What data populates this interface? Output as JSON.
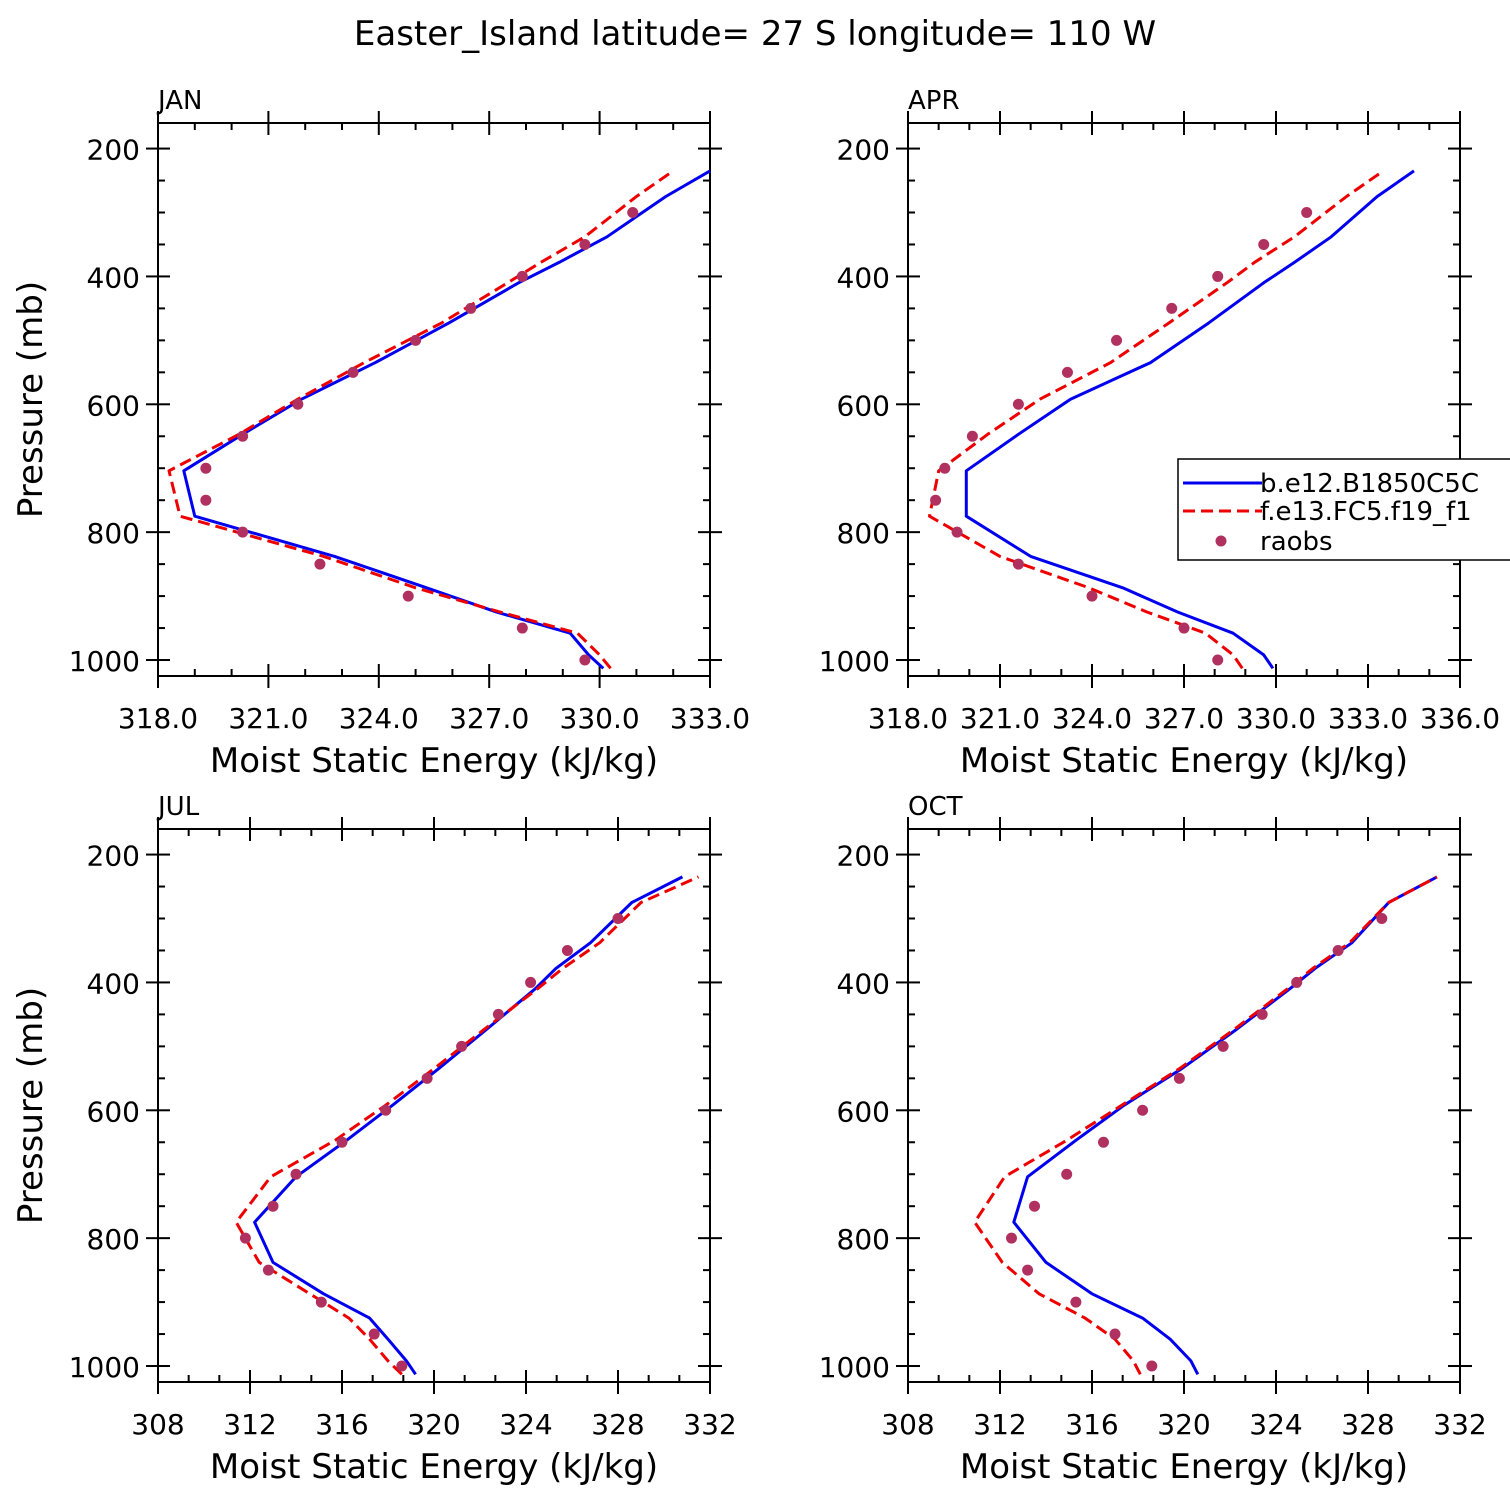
{
  "figure": {
    "title": "Easter_Island  latitude= 27 S longitude= 110 W"
  },
  "legend": {
    "entries": [
      {
        "label": "b.e12.B1850C5C",
        "style": "solid",
        "color": "#0000ee"
      },
      {
        "label": "f.e13.FC5.f19_f1",
        "style": "dashed",
        "color": "#ee0000"
      },
      {
        "label": "raobs",
        "style": "marker",
        "color": "#b03060"
      }
    ]
  },
  "chart_data": [
    {
      "type": "line",
      "panel_label": "JAN",
      "xlabel": "Moist Static Energy (kJ/kg)",
      "ylabel": "Pressure (mb)",
      "xlim": [
        318,
        333
      ],
      "ylim": [
        1000,
        200
      ],
      "x_ticks": [
        "318.0",
        "321.0",
        "324.0",
        "327.0",
        "330.0",
        "333.0"
      ],
      "y_ticks": [
        "200",
        "400",
        "600",
        "800",
        "1000"
      ],
      "pressure_model": [
        1013,
        992,
        958,
        925,
        887,
        838,
        775,
        704,
        647,
        592,
        535,
        473,
        410,
        378,
        338,
        275,
        235
      ],
      "series": [
        {
          "name": "b.e12.B1850C5C",
          "style": "solid",
          "color": "#0000ee",
          "values": [
            330.1,
            329.7,
            329.2,
            327.2,
            325.3,
            322.8,
            319.0,
            318.7,
            320.3,
            321.9,
            323.9,
            325.9,
            327.8,
            328.9,
            330.2,
            331.8,
            333.0
          ]
        },
        {
          "name": "f.e13.FC5.f19_f1",
          "style": "dashed",
          "color": "#ee0000",
          "values": [
            330.3,
            330.0,
            329.4,
            327.3,
            325.0,
            322.5,
            318.6,
            318.3,
            320.2,
            321.8,
            323.6,
            325.7,
            327.5,
            328.4,
            329.6,
            331.0,
            332.0
          ]
        },
        {
          "name": "raobs",
          "style": "marker",
          "color": "#b03060",
          "pressure": [
            1000,
            950,
            900,
            850,
            800,
            750,
            700,
            650,
            600,
            550,
            500,
            450,
            400,
            350,
            300
          ],
          "values": [
            329.6,
            327.9,
            324.8,
            322.4,
            320.3,
            319.3,
            319.3,
            320.3,
            321.8,
            323.3,
            325.0,
            326.5,
            327.9,
            329.6,
            330.9
          ]
        }
      ]
    },
    {
      "type": "line",
      "panel_label": "APR",
      "xlabel": "Moist Static Energy (kJ/kg)",
      "ylabel": "",
      "xlim": [
        318,
        336
      ],
      "ylim": [
        1000,
        200
      ],
      "x_ticks": [
        "318.0",
        "321.0",
        "324.0",
        "327.0",
        "330.0",
        "333.0",
        "336.0"
      ],
      "y_ticks": [
        "200",
        "400",
        "600",
        "800",
        "1000"
      ],
      "pressure_model": [
        1013,
        992,
        958,
        925,
        887,
        838,
        775,
        704,
        647,
        592,
        535,
        473,
        410,
        378,
        338,
        275,
        235
      ],
      "series": [
        {
          "name": "b.e12.B1850C5C",
          "style": "solid",
          "color": "#0000ee",
          "values": [
            329.9,
            329.6,
            328.6,
            326.8,
            325.0,
            322.0,
            319.9,
            319.9,
            321.6,
            323.3,
            325.9,
            327.8,
            329.6,
            330.6,
            331.8,
            333.3,
            334.5
          ]
        },
        {
          "name": "f.e13.FC5.f19_f1",
          "style": "dashed",
          "color": "#ee0000",
          "values": [
            328.9,
            328.6,
            327.7,
            325.8,
            323.9,
            321.0,
            318.7,
            319.0,
            320.6,
            322.3,
            324.6,
            326.5,
            328.4,
            329.3,
            330.6,
            332.3,
            333.5
          ]
        },
        {
          "name": "raobs",
          "style": "marker",
          "color": "#b03060",
          "pressure": [
            1000,
            950,
            900,
            850,
            800,
            750,
            700,
            650,
            600,
            550,
            500,
            450,
            400,
            350,
            300
          ],
          "values": [
            328.1,
            327.0,
            324.0,
            321.6,
            319.6,
            318.9,
            319.2,
            320.1,
            321.6,
            323.2,
            324.8,
            326.6,
            328.1,
            329.6,
            331.0
          ]
        }
      ]
    },
    {
      "type": "line",
      "panel_label": "JUL",
      "xlabel": "Moist Static Energy (kJ/kg)",
      "ylabel": "Pressure (mb)",
      "xlim": [
        308,
        332
      ],
      "ylim": [
        1000,
        200
      ],
      "x_ticks": [
        "308",
        "312",
        "316",
        "320",
        "324",
        "328",
        "332"
      ],
      "y_ticks": [
        "200",
        "400",
        "600",
        "800",
        "1000"
      ],
      "pressure_model": [
        1013,
        992,
        958,
        925,
        887,
        838,
        775,
        704,
        647,
        592,
        535,
        473,
        410,
        378,
        338,
        275,
        235
      ],
      "series": [
        {
          "name": "b.e12.B1850C5C",
          "style": "solid",
          "color": "#0000ee",
          "values": [
            319.2,
            318.8,
            318.0,
            317.2,
            315.2,
            313.0,
            312.2,
            314.0,
            316.2,
            318.2,
            320.2,
            322.3,
            324.4,
            325.3,
            326.8,
            328.6,
            330.8
          ]
        },
        {
          "name": "f.e13.FC5.f19_f1",
          "style": "dashed",
          "color": "#ee0000",
          "values": [
            318.6,
            318.0,
            317.2,
            316.3,
            314.6,
            312.4,
            311.4,
            312.9,
            315.7,
            317.9,
            320.0,
            322.2,
            324.5,
            325.6,
            327.2,
            329.0,
            331.5
          ]
        },
        {
          "name": "raobs",
          "style": "marker",
          "color": "#b03060",
          "pressure": [
            1000,
            950,
            900,
            850,
            800,
            750,
            700,
            650,
            600,
            550,
            500,
            450,
            400,
            350,
            300
          ],
          "values": [
            318.6,
            317.4,
            315.1,
            312.8,
            311.8,
            313.0,
            314.0,
            316.0,
            317.9,
            319.7,
            321.2,
            322.8,
            324.2,
            325.8,
            328.0
          ]
        }
      ]
    },
    {
      "type": "line",
      "panel_label": "OCT",
      "xlabel": "Moist Static Energy (kJ/kg)",
      "ylabel": "",
      "xlim": [
        308,
        332
      ],
      "ylim": [
        1000,
        200
      ],
      "x_ticks": [
        "308",
        "312",
        "316",
        "320",
        "324",
        "328",
        "332"
      ],
      "y_ticks": [
        "200",
        "400",
        "600",
        "800",
        "1000"
      ],
      "pressure_model": [
        1013,
        992,
        958,
        925,
        887,
        838,
        775,
        704,
        647,
        592,
        535,
        473,
        410,
        378,
        338,
        275,
        235
      ],
      "series": [
        {
          "name": "b.e12.B1850C5C",
          "style": "solid",
          "color": "#0000ee",
          "values": [
            320.6,
            320.3,
            319.4,
            318.2,
            316.0,
            314.0,
            312.6,
            313.2,
            315.3,
            317.4,
            319.9,
            322.3,
            324.6,
            325.7,
            327.3,
            328.9,
            331.0
          ]
        },
        {
          "name": "f.e13.FC5.f19_f1",
          "style": "dashed",
          "color": "#ee0000",
          "values": [
            318.1,
            317.8,
            317.0,
            315.7,
            313.7,
            312.1,
            310.9,
            312.2,
            314.9,
            317.3,
            319.8,
            322.2,
            324.5,
            325.6,
            327.2,
            328.9,
            331.0
          ]
        },
        {
          "name": "raobs",
          "style": "marker",
          "color": "#b03060",
          "pressure": [
            1000,
            950,
            900,
            850,
            800,
            750,
            700,
            650,
            600,
            550,
            500,
            450,
            400,
            350,
            300
          ],
          "values": [
            318.6,
            317.0,
            315.3,
            313.2,
            312.5,
            313.5,
            314.9,
            316.5,
            318.2,
            319.8,
            321.7,
            323.4,
            324.9,
            326.7,
            328.6
          ]
        }
      ]
    }
  ]
}
